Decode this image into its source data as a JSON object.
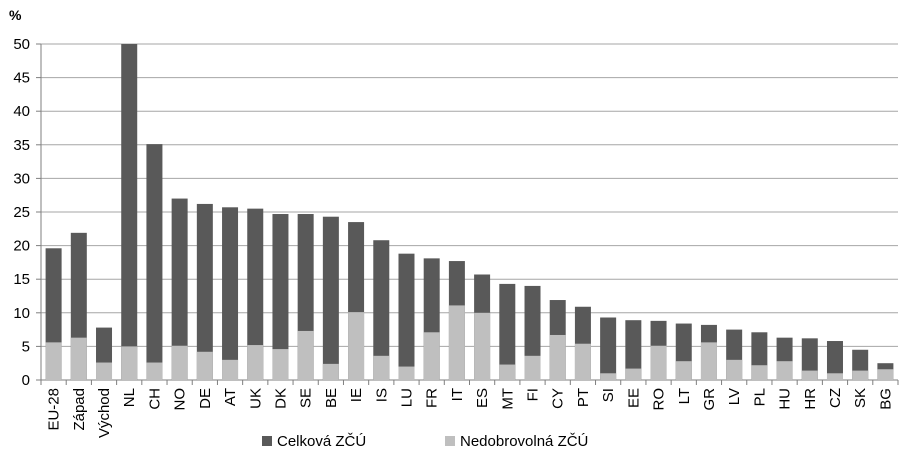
{
  "chart_data": {
    "type": "bar",
    "stacked": false,
    "overlaid": true,
    "unit": "%",
    "categories": [
      "EU-28",
      "Západ",
      "Východ",
      "NL",
      "CH",
      "NO",
      "DE",
      "AT",
      "UK",
      "DK",
      "SE",
      "BE",
      "IE",
      "IS",
      "LU",
      "FR",
      "IT",
      "ES",
      "MT",
      "FI",
      "CY",
      "PT",
      "SI",
      "EE",
      "RO",
      "LT",
      "GR",
      "LV",
      "PL",
      "HU",
      "HR",
      "CZ",
      "SK",
      "BG"
    ],
    "series": [
      {
        "name": "Celková ZČÚ",
        "color": "#595959",
        "values": [
          19.6,
          21.9,
          7.8,
          50.0,
          35.1,
          27.0,
          26.2,
          25.7,
          25.5,
          24.7,
          24.7,
          24.3,
          23.5,
          20.8,
          18.8,
          18.1,
          17.7,
          15.7,
          14.3,
          14.0,
          11.9,
          10.9,
          9.3,
          8.9,
          8.8,
          8.4,
          8.2,
          7.5,
          7.1,
          6.3,
          6.2,
          5.8,
          4.5,
          2.5
        ]
      },
      {
        "name": "Nedobrovolná ZČÚ",
        "color": "#bfbfbf",
        "values": [
          5.6,
          6.3,
          2.6,
          5.0,
          2.6,
          5.1,
          4.2,
          3.0,
          5.2,
          4.6,
          7.3,
          2.4,
          10.1,
          3.6,
          2.0,
          7.1,
          11.1,
          10.0,
          2.3,
          3.6,
          6.7,
          5.4,
          1.0,
          1.7,
          5.1,
          2.8,
          5.6,
          3.0,
          2.2,
          2.8,
          1.4,
          1.0,
          1.4,
          1.6
        ]
      }
    ],
    "ylim": [
      0,
      50
    ],
    "yticks": [
      0,
      5,
      10,
      15,
      20,
      25,
      30,
      35,
      40,
      45,
      50
    ],
    "grid": true,
    "legend_position": "bottom"
  }
}
